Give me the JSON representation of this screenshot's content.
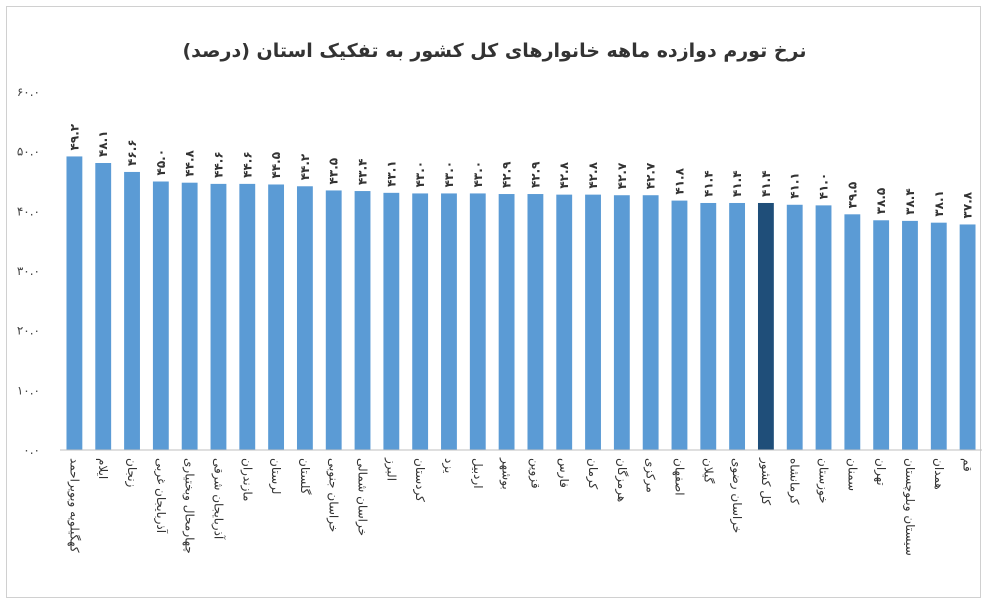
{
  "chart_data": {
    "type": "bar",
    "title": "نرخ تورم دوازده ماهه خانوارهای کل کشور به تفکیک استان (درصد)",
    "ylim": [
      0,
      60
    ],
    "yticks": [
      0,
      10,
      20,
      30,
      40,
      50,
      60
    ],
    "ytick_labels": [
      "۰.۰",
      "۱۰.۰",
      "۲۰.۰",
      "۳۰.۰",
      "۴۰.۰",
      "۵۰.۰",
      "۶۰.۰"
    ],
    "grid": false,
    "legend": "none",
    "categories": [
      "کهگیلویه وبویراحمد",
      "ایلام",
      "زنجان",
      "آذربایجان غربی",
      "چهارمحال وبختیاری",
      "آذربایجان شرقی",
      "مازندران",
      "لرستان",
      "گلستان",
      "خراسان جنوبی",
      "خراسان شمالی",
      "البرز",
      "کردستان",
      "یزد",
      "اردبیل",
      "بوشهر",
      "قزوین",
      "فارس",
      "کرمان",
      "هرمزگان",
      "مرکزی",
      "اصفهان",
      "گیلان",
      "خراسان رضوی",
      "کل کشور",
      "کرمانشاه",
      "خوزستان",
      "سمنان",
      "تهران",
      "سیستان وبلوچستان",
      "همدان",
      "قم"
    ],
    "values": [
      49.2,
      48.1,
      46.6,
      45.0,
      44.8,
      44.6,
      44.6,
      44.5,
      44.2,
      43.5,
      43.4,
      43.1,
      43.0,
      43.0,
      43.0,
      42.9,
      42.9,
      42.8,
      42.8,
      42.7,
      42.7,
      41.8,
      41.4,
      41.4,
      41.4,
      41.1,
      41.0,
      39.5,
      38.5,
      38.4,
      38.1,
      37.8
    ],
    "value_labels": [
      "۴۹.۲",
      "۴۸.۱",
      "۴۶.۶",
      "۴۵.۰",
      "۴۴.۸",
      "۴۴.۶",
      "۴۴.۶",
      "۴۴.۵",
      "۴۴.۲",
      "۴۳.۵",
      "۴۳.۴",
      "۴۳.۱",
      "۴۳.۰",
      "۴۳.۰",
      "۴۳.۰",
      "۴۲.۹",
      "۴۲.۹",
      "۴۲.۸",
      "۴۲.۸",
      "۴۲.۷",
      "۴۲.۷",
      "۴۱.۸",
      "۴۱.۴",
      "۴۱.۴",
      "۴۱.۴",
      "۴۱.۱",
      "۴۱.۰",
      "۳۹.۵",
      "۳۸.۵",
      "۳۸.۴",
      "۳۸.۱",
      "۳۷.۸"
    ],
    "highlight_index": 24,
    "colors": {
      "bar": "#5b9bd5",
      "highlight": "#1f4e79"
    }
  }
}
